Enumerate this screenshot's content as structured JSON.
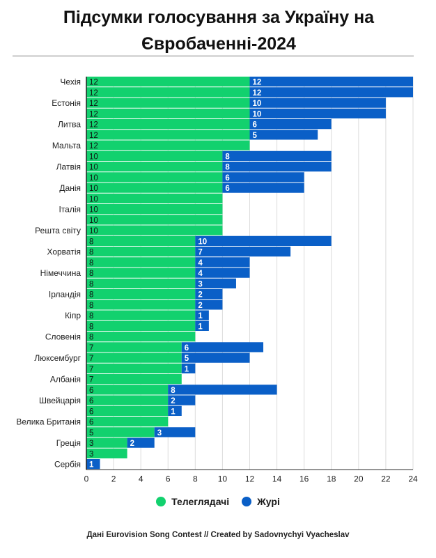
{
  "title_line1": "Підсумки голосування за Україну на",
  "title_line2": "Євробаченні-2024",
  "colors": {
    "televoters": "#12d16e",
    "jury": "#0a5fc7",
    "grid": "#dcdcdc",
    "axis": "#222222"
  },
  "legend": {
    "televoters": "Телеглядачі",
    "jury": "Журі"
  },
  "credits": {
    "prefix": "Дані Eurovision Song Contest // ",
    "suffix": "Created by Sadovnychyi Vyacheslav"
  },
  "chart_data": {
    "type": "bar",
    "orientation": "horizontal",
    "stacked": true,
    "xlim": [
      0,
      24
    ],
    "x_ticks": [
      "0",
      "2",
      "4",
      "6",
      "8",
      "10",
      "12",
      "14",
      "16",
      "18",
      "20",
      "22",
      "24"
    ],
    "grid": true,
    "categories": [
      "Чехія",
      "",
      "Естонія",
      "",
      "Литва",
      "",
      "Мальта",
      "",
      "Латвія",
      "",
      "Данія",
      "",
      "Італія",
      "",
      "Решта світу",
      "",
      "Хорватія",
      "",
      "Німеччина",
      "",
      "Ірландія",
      "",
      "Кіпр",
      "",
      "Словенія",
      "",
      "Люксембург",
      "",
      "Албанія",
      "",
      "Швейцарія",
      "",
      "Велика Британія",
      "",
      "Греція",
      "",
      "Сербія"
    ],
    "series": [
      {
        "name": "Телеглядачі",
        "values": [
          12,
          12,
          12,
          12,
          12,
          12,
          12,
          10,
          10,
          10,
          10,
          10,
          10,
          10,
          10,
          8,
          8,
          8,
          8,
          8,
          8,
          8,
          8,
          8,
          8,
          7,
          7,
          7,
          7,
          6,
          6,
          6,
          6,
          5,
          3,
          3,
          0
        ]
      },
      {
        "name": "Журі",
        "values": [
          12,
          12,
          10,
          10,
          6,
          5,
          0,
          8,
          8,
          6,
          6,
          0,
          0,
          0,
          0,
          10,
          7,
          4,
          4,
          3,
          2,
          2,
          1,
          1,
          0,
          6,
          5,
          1,
          0,
          8,
          2,
          1,
          0,
          3,
          2,
          0,
          1
        ]
      }
    ]
  }
}
